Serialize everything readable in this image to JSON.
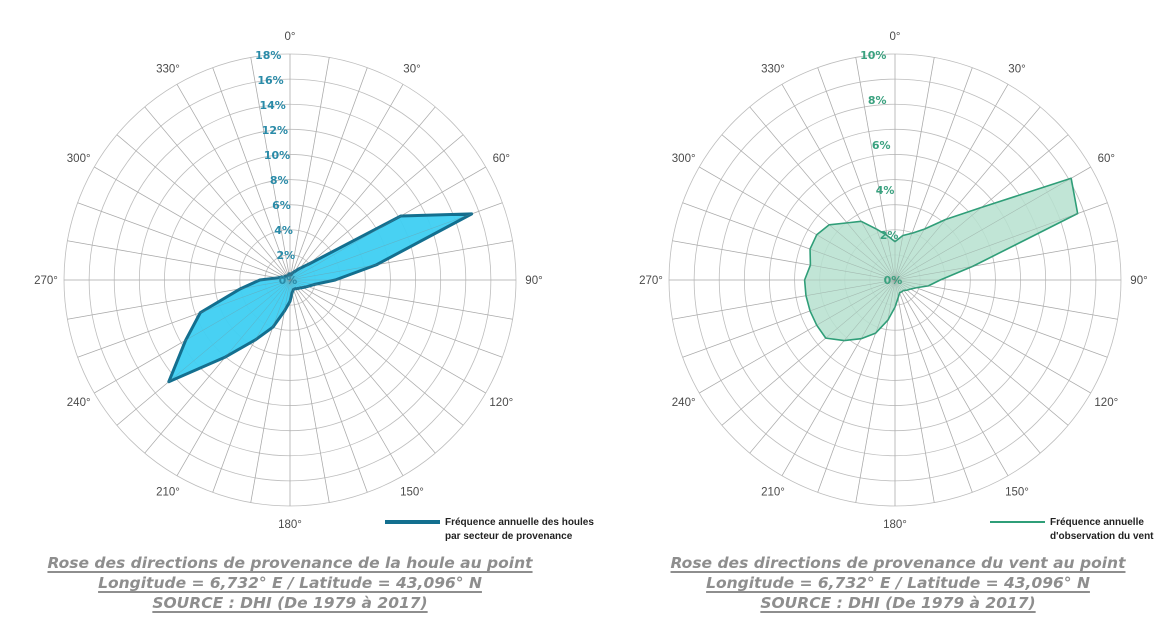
{
  "chart_data": [
    {
      "type": "polar-area",
      "title": "",
      "angle_labels": [
        "0°",
        "30°",
        "60°",
        "90°",
        "120°",
        "150°",
        "180°",
        "210°",
        "240°",
        "270°",
        "300°",
        "330°"
      ],
      "radial_ticks": [
        "0%",
        "2%",
        "4%",
        "6%",
        "8%",
        "10%",
        "12%",
        "14%",
        "16%",
        "18%"
      ],
      "rmax": 18,
      "grid": true,
      "directions_deg": [
        0,
        10,
        20,
        30,
        40,
        50,
        60,
        70,
        80,
        90,
        100,
        110,
        120,
        130,
        140,
        150,
        160,
        170,
        180,
        190,
        200,
        210,
        220,
        230,
        240,
        250,
        260,
        270,
        280,
        290,
        300,
        310,
        320,
        330,
        340,
        350
      ],
      "series": [
        {
          "name": "",
          "values": [
            0.5,
            0.4,
            0.6,
            0.8,
            1.2,
            2.0,
            10.2,
            15.4,
            7.0,
            3.6,
            2.0,
            1.5,
            1.2,
            1.0,
            0.9,
            0.8,
            0.8,
            1.0,
            1.7,
            2.5,
            4.0,
            5.5,
            8.0,
            12.6,
            9.6,
            7.6,
            4.0,
            2.4,
            1.0,
            0.7,
            0.5,
            0.5,
            0.4,
            0.4,
            0.4,
            0.5
          ],
          "color": "#3ecff2",
          "stroke": "#136f8f"
        }
      ],
      "legend": {
        "line1": "Fréquence annuelle des houles",
        "line2": "par secteur de provenance",
        "position": "bottom-right"
      },
      "tick_color": "#2a8ba8",
      "caption": [
        "Rose des directions de provenance de la houle au point",
        "Longitude = 6,732° E / Latitude = 43,096° N",
        "SOURCE : DHI (De 1979 à 2017)"
      ]
    },
    {
      "type": "polar-area",
      "title": "",
      "angle_labels": [
        "0°",
        "30°",
        "60°",
        "90°",
        "120°",
        "150°",
        "180°",
        "210°",
        "240°",
        "270°",
        "300°",
        "330°"
      ],
      "radial_ticks": [
        "0%",
        "2%",
        "4%",
        "6%",
        "8%",
        "10%"
      ],
      "rmax": 10,
      "grid": true,
      "directions_deg": [
        0,
        10,
        20,
        30,
        40,
        50,
        60,
        70,
        80,
        90,
        100,
        110,
        120,
        130,
        140,
        150,
        160,
        170,
        180,
        190,
        200,
        210,
        220,
        230,
        240,
        250,
        260,
        270,
        280,
        290,
        300,
        310,
        320,
        330,
        340,
        350
      ],
      "series": [
        {
          "name": "",
          "values": [
            1.7,
            2.0,
            2.2,
            2.6,
            3.5,
            5.0,
            9.0,
            8.6,
            3.5,
            2.0,
            1.5,
            1.0,
            0.8,
            0.7,
            0.6,
            0.6,
            0.6,
            0.8,
            1.2,
            1.8,
            2.5,
            3.0,
            3.5,
            4.0,
            4.0,
            4.0,
            4.0,
            4.0,
            3.8,
            4.0,
            4.0,
            3.8,
            3.3,
            3.0,
            2.4,
            2.0
          ],
          "color": "#b6e0cf",
          "stroke": "#2f9e78"
        }
      ],
      "legend": {
        "line1": "Fréquence annuelle",
        "line2": "d'observation du vent",
        "position": "bottom-right"
      },
      "tick_color": "#3aa17f",
      "caption": [
        "Rose des directions de provenance du vent au point",
        "Longitude = 6,732° E / Latitude = 43,096° N",
        "SOURCE : DHI (De 1979 à 2017)"
      ]
    }
  ]
}
